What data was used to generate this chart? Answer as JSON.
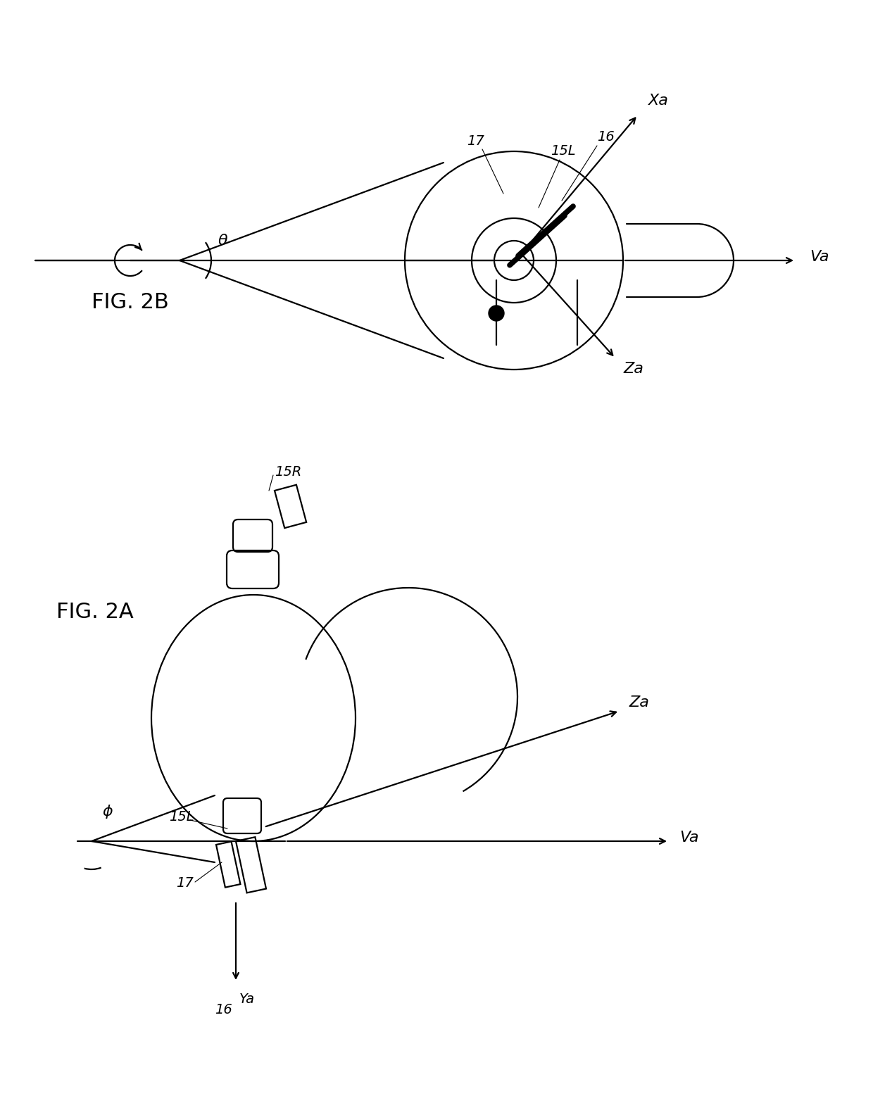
{
  "bg_color": "#ffffff",
  "line_color": "#000000",
  "fig_width": 12.4,
  "fig_height": 15.84,
  "fig2b_label": "FIG. 2B",
  "fig2a_label": "FIG. 2A",
  "lw": 1.6,
  "labels": {
    "Xa": "Xa",
    "Va": "Va",
    "Za": "Za",
    "Ya": "Ya",
    "theta": "θ",
    "phi": "ϕ",
    "17": "17",
    "16": "16",
    "15L": "15L",
    "15R": "15R"
  }
}
